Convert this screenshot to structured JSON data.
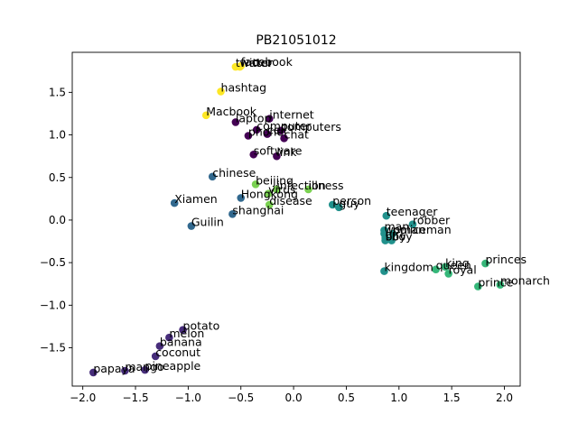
{
  "chart_data": {
    "type": "scatter",
    "title": "PB21051012",
    "xlabel": "",
    "ylabel": "",
    "xlim": [
      -2.1,
      2.15
    ],
    "ylim": [
      -1.95,
      1.97
    ],
    "xticks": [
      -2.0,
      -1.5,
      -1.0,
      -0.5,
      0.0,
      0.5,
      1.0,
      1.5,
      2.0
    ],
    "xtick_labels": [
      "−2.0",
      "−1.5",
      "−1.0",
      "−0.5",
      "0.0",
      "0.5",
      "1.0",
      "1.5",
      "2.0"
    ],
    "yticks": [
      -1.5,
      -1.0,
      -0.5,
      0.0,
      0.5,
      1.0,
      1.5
    ],
    "ytick_labels": [
      "−1.5",
      "−1.0",
      "−0.5",
      "0.0",
      "0.5",
      "1.0",
      "1.5"
    ],
    "grid": false,
    "colormap": "viridis",
    "points": [
      {
        "label": "facebook",
        "x": -0.5,
        "y": 1.81,
        "color": "#fde725"
      },
      {
        "label": "twitter",
        "x": -0.55,
        "y": 1.8,
        "color": "#fde725"
      },
      {
        "label": "water",
        "x": -0.51,
        "y": 1.8,
        "color": "#fde725"
      },
      {
        "label": "hashtag",
        "x": -0.69,
        "y": 1.51,
        "color": "#fde725"
      },
      {
        "label": "Macbook",
        "x": -0.83,
        "y": 1.23,
        "color": "#fde725"
      },
      {
        "label": "laptop",
        "x": -0.55,
        "y": 1.15,
        "color": "#440154"
      },
      {
        "label": "internet",
        "x": -0.23,
        "y": 1.19,
        "color": "#440154"
      },
      {
        "label": "computer",
        "x": -0.35,
        "y": 1.06,
        "color": "#440154"
      },
      {
        "label": "computers",
        "x": -0.12,
        "y": 1.05,
        "color": "#440154"
      },
      {
        "label": "cell",
        "x": -0.25,
        "y": 1.01,
        "color": "#440154"
      },
      {
        "label": "chat",
        "x": -0.09,
        "y": 0.96,
        "color": "#440154"
      },
      {
        "label": "phone",
        "x": -0.43,
        "y": 0.99,
        "color": "#440154"
      },
      {
        "label": "software",
        "x": -0.38,
        "y": 0.77,
        "color": "#440154"
      },
      {
        "label": "link",
        "x": -0.16,
        "y": 0.75,
        "color": "#440154"
      },
      {
        "label": "chinese",
        "x": -0.77,
        "y": 0.51,
        "color": "#31688e"
      },
      {
        "label": "beijing",
        "x": -0.36,
        "y": 0.42,
        "color": "#7ad151"
      },
      {
        "label": "infection",
        "x": -0.16,
        "y": 0.36,
        "color": "#7ad151"
      },
      {
        "label": "illness",
        "x": 0.14,
        "y": 0.36,
        "color": "#7ad151"
      },
      {
        "label": "virus",
        "x": -0.24,
        "y": 0.31,
        "color": "#7ad151"
      },
      {
        "label": "Hongkong",
        "x": -0.5,
        "y": 0.26,
        "color": "#31688e"
      },
      {
        "label": "disease",
        "x": -0.23,
        "y": 0.18,
        "color": "#7ad151"
      },
      {
        "label": "Xiamen",
        "x": -1.13,
        "y": 0.2,
        "color": "#31688e"
      },
      {
        "label": "person",
        "x": 0.37,
        "y": 0.18,
        "color": "#21918c"
      },
      {
        "label": "guy",
        "x": 0.43,
        "y": 0.15,
        "color": "#21918c"
      },
      {
        "label": "shanghai",
        "x": -0.58,
        "y": 0.07,
        "color": "#31688e"
      },
      {
        "label": "teenager",
        "x": 0.88,
        "y": 0.05,
        "color": "#21918c"
      },
      {
        "label": "Guilin",
        "x": -0.97,
        "y": -0.07,
        "color": "#31688e"
      },
      {
        "label": "robber",
        "x": 1.13,
        "y": -0.05,
        "color": "#21918c"
      },
      {
        "label": "man",
        "x": 0.86,
        "y": -0.12,
        "color": "#21918c"
      },
      {
        "label": "woman",
        "x": 0.86,
        "y": -0.16,
        "color": "#21918c"
      },
      {
        "label": "policeman",
        "x": 0.94,
        "y": -0.16,
        "color": "#21918c"
      },
      {
        "label": "girl",
        "x": 0.87,
        "y": -0.21,
        "color": "#21918c"
      },
      {
        "label": "boy",
        "x": 0.87,
        "y": -0.24,
        "color": "#21918c"
      },
      {
        "label": "boy",
        "x": 0.93,
        "y": -0.24,
        "color": "#21918c"
      },
      {
        "label": "princes",
        "x": 1.82,
        "y": -0.51,
        "color": "#35b779"
      },
      {
        "label": "king",
        "x": 1.44,
        "y": -0.55,
        "color": "#35b779"
      },
      {
        "label": "queen",
        "x": 1.35,
        "y": -0.58,
        "color": "#35b779"
      },
      {
        "label": "royal",
        "x": 1.47,
        "y": -0.63,
        "color": "#35b779"
      },
      {
        "label": "kingdom",
        "x": 0.86,
        "y": -0.6,
        "color": "#21918c"
      },
      {
        "label": "prince",
        "x": 1.75,
        "y": -0.78,
        "color": "#35b779"
      },
      {
        "label": "monarch",
        "x": 1.96,
        "y": -0.76,
        "color": "#35b779"
      },
      {
        "label": "potato",
        "x": -1.05,
        "y": -1.29,
        "color": "#472d7b"
      },
      {
        "label": "melon",
        "x": -1.18,
        "y": -1.38,
        "color": "#472d7b"
      },
      {
        "label": "banana",
        "x": -1.27,
        "y": -1.48,
        "color": "#472d7b"
      },
      {
        "label": "coconut",
        "x": -1.31,
        "y": -1.6,
        "color": "#472d7b"
      },
      {
        "label": "papaya",
        "x": -1.9,
        "y": -1.79,
        "color": "#472d7b"
      },
      {
        "label": "mango",
        "x": -1.6,
        "y": -1.77,
        "color": "#472d7b"
      },
      {
        "label": "pineapple",
        "x": -1.41,
        "y": -1.76,
        "color": "#472d7b"
      }
    ]
  }
}
